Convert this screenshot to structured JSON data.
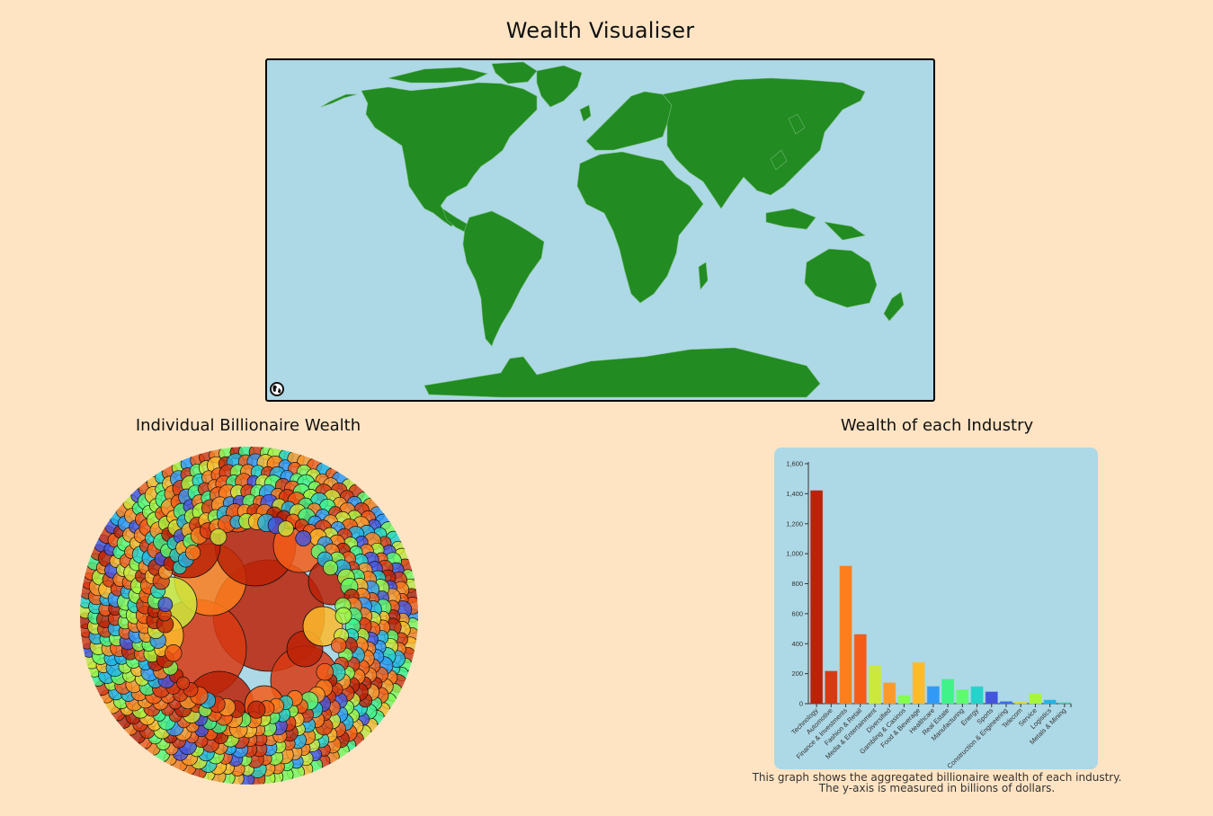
{
  "header": {
    "title": "Wealth Visualiser"
  },
  "map": {
    "ocean_color": "#add8e6",
    "land_color": "#228b22",
    "border_color": "#7fbf7f",
    "reset_icon": "globe-icon"
  },
  "bubble_section": {
    "title": "Individual Billionaire Wealth",
    "background": "#add8e6"
  },
  "bar_section": {
    "title": "Wealth of each Industry",
    "caption_line1": "This graph shows the aggregated billionaire wealth of each industry.",
    "caption_line2": "The y-axis is measured in billions of dollars."
  },
  "chart_data": [
    {
      "type": "bar",
      "title": "Wealth of each Industry",
      "xlabel": "",
      "ylabel": "Billions of dollars",
      "ylim": [
        0,
        1600
      ],
      "yticks": [
        0,
        200,
        400,
        600,
        800,
        1000,
        1200,
        1400,
        1600
      ],
      "ytick_labels": [
        "0",
        "200",
        "400",
        "600",
        "800",
        "1,000",
        "1,200",
        "1,400",
        "1,600"
      ],
      "grid": false,
      "categories": [
        "Technology",
        "Automotive",
        "Finance & Investments",
        "Fashion & Retail",
        "Media & Entertainment",
        "Diversified",
        "Gambling & Casinos",
        "Food & Beverage",
        "Healthcare",
        "Real Estate",
        "Manufacturing",
        "Energy",
        "Sports",
        "Construction & Engineering",
        "Telecom",
        "Service",
        "Logistics",
        "Metals & Mining"
      ],
      "values": [
        1420,
        216,
        917,
        461,
        252,
        138,
        54,
        274,
        114,
        162,
        92,
        113,
        78,
        13,
        11,
        66,
        23,
        5
      ],
      "colors": [
        "#bb2207",
        "#d83a12",
        "#fd7e1d",
        "#f45c17",
        "#cde83c",
        "#fb9a2a",
        "#84fa55",
        "#fdbb2c",
        "#3299f5",
        "#40f288",
        "#5ffb6e",
        "#26d2c9",
        "#4454dd",
        "#3a6ee5",
        "#e0d83a",
        "#a8f53e",
        "#20b4e6",
        "#3bc6a0"
      ]
    },
    {
      "type": "bubble",
      "title": "Individual Billionaire Wealth",
      "description": "Packed circles; each circle is one billionaire, sized by wealth, colored by industry"
    }
  ]
}
